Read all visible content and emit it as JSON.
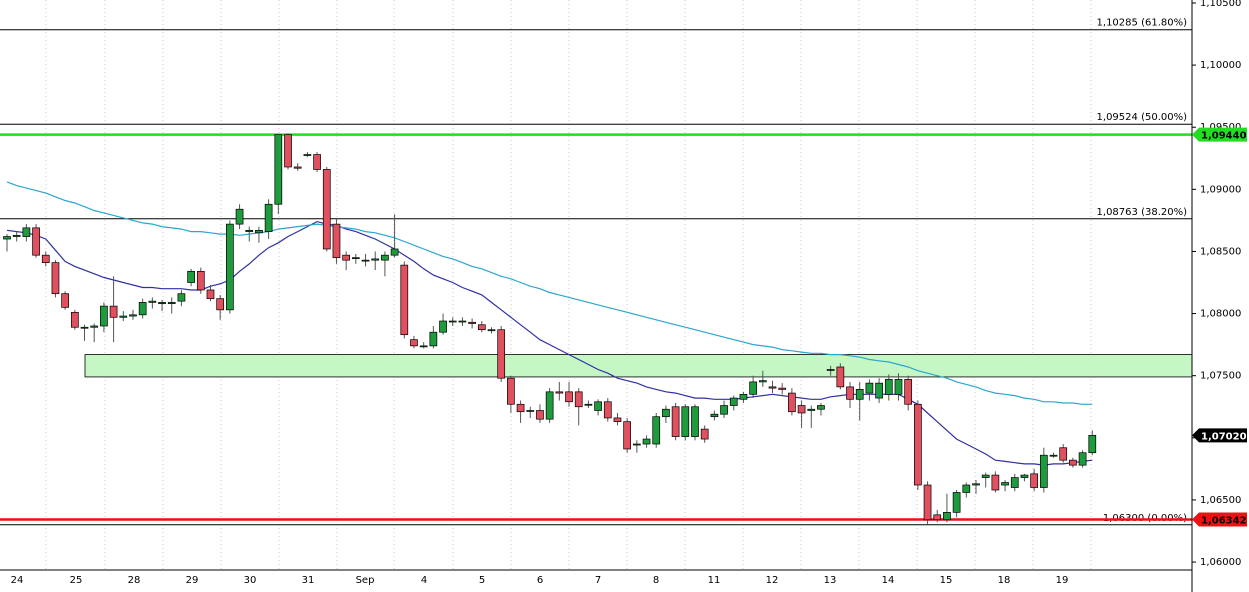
{
  "chart_data": {
    "type": "candlestick",
    "x_labels": [
      "24",
      "25",
      "28",
      "29",
      "30",
      "31",
      "Sep",
      "4",
      "5",
      "6",
      "7",
      "8",
      "11",
      "12",
      "13",
      "14",
      "15",
      "18",
      "19"
    ],
    "open": [
      1.086,
      1.0862,
      1.0862,
      1.0869,
      1.0847,
      1.0841,
      1.0816,
      1.0801,
      1.0789,
      1.0789,
      1.079,
      1.0806,
      1.0797,
      1.0798,
      1.0799,
      1.0809,
      1.0808,
      1.0808,
      1.081,
      1.0825,
      1.0834,
      1.0819,
      1.0812,
      1.0803,
      1.0872,
      1.0866,
      1.0865,
      1.0866,
      1.0888,
      1.0944,
      1.0918,
      1.0928,
      1.0928,
      1.0916,
      1.0872,
      1.0847,
      1.0845,
      1.0843,
      1.0843,
      1.0843,
      1.0847,
      1.0839,
      1.0779,
      1.0774,
      1.0774,
      1.0785,
      1.0794,
      1.0794,
      1.0793,
      1.0791,
      1.0787,
      1.0787,
      1.0748,
      1.0727,
      1.0722,
      1.0722,
      1.0715,
      1.0737,
      1.0737,
      1.0737,
      1.0727,
      1.0722,
      1.0729,
      1.0716,
      1.0713,
      1.0695,
      1.0695,
      1.0695,
      1.0717,
      1.0725,
      1.0701,
      1.0701,
      1.0707,
      1.0717,
      1.0719,
      1.0726,
      1.0731,
      1.0735,
      1.0745,
      1.074,
      1.074,
      1.0736,
      1.0726,
      1.0722,
      1.0723,
      1.0755,
      1.0757,
      1.0741,
      1.0731,
      1.0736,
      1.0732,
      1.0735,
      1.0735,
      1.0747,
      1.0727,
      1.0662,
      1.0638,
      1.0634,
      1.064,
      1.0656,
      1.0662,
      1.0668,
      1.067,
      1.0662,
      1.066,
      1.0668,
      1.0671,
      1.066,
      1.0686,
      1.0692,
      1.0682,
      1.0678,
      1.0688
    ],
    "high": [
      1.0864,
      1.0866,
      1.0872,
      1.0872,
      1.085,
      1.0843,
      1.0818,
      1.0803,
      1.0791,
      1.0792,
      1.0809,
      1.083,
      1.0802,
      1.0803,
      1.0812,
      1.0813,
      1.0811,
      1.0813,
      1.0819,
      1.0836,
      1.0837,
      1.0823,
      1.0815,
      1.0875,
      1.0888,
      1.087,
      1.087,
      1.0892,
      1.0944,
      1.0945,
      1.0921,
      1.093,
      1.093,
      1.0918,
      1.0876,
      1.085,
      1.0848,
      1.0848,
      1.085,
      1.085,
      1.088,
      1.0842,
      1.0782,
      1.0777,
      1.079,
      1.08,
      1.0797,
      1.0797,
      1.0796,
      1.0794,
      1.0789,
      1.079,
      1.075,
      1.073,
      1.0725,
      1.0727,
      1.074,
      1.0745,
      1.0745,
      1.074,
      1.073,
      1.0731,
      1.0732,
      1.072,
      1.0716,
      1.0698,
      1.0702,
      1.072,
      1.0726,
      1.0728,
      1.0727,
      1.0727,
      1.071,
      1.0722,
      1.073,
      1.0734,
      1.0737,
      1.075,
      1.0754,
      1.0746,
      1.0744,
      1.074,
      1.073,
      1.0726,
      1.0728,
      1.0758,
      1.076,
      1.0745,
      1.0745,
      1.0747,
      1.0748,
      1.0751,
      1.0752,
      1.075,
      1.073,
      1.0665,
      1.0642,
      1.0655,
      1.0658,
      1.0664,
      1.0666,
      1.0672,
      1.0673,
      1.0666,
      1.0671,
      1.0671,
      1.0675,
      1.0692,
      1.0688,
      1.0695,
      1.0684,
      1.069,
      1.0706
    ],
    "low": [
      1.085,
      1.0858,
      1.0858,
      1.0845,
      1.0838,
      1.0813,
      1.0803,
      1.0787,
      1.0778,
      1.0777,
      1.0785,
      1.0777,
      1.0794,
      1.0795,
      1.0796,
      1.0804,
      1.0802,
      1.08,
      1.0806,
      1.0822,
      1.0816,
      1.081,
      1.0795,
      1.08,
      1.0868,
      1.0858,
      1.0857,
      1.086,
      1.088,
      1.0916,
      1.0915,
      1.0926,
      1.0914,
      1.085,
      1.084,
      1.0835,
      1.084,
      1.0838,
      1.0835,
      1.083,
      1.0845,
      1.078,
      1.0772,
      1.0772,
      1.0772,
      1.0783,
      1.079,
      1.079,
      1.0788,
      1.0785,
      1.0784,
      1.0745,
      1.072,
      1.0712,
      1.0716,
      1.0712,
      1.0712,
      1.073,
      1.0725,
      1.071,
      1.0724,
      1.0718,
      1.0713,
      1.071,
      1.0688,
      1.0688,
      1.0692,
      1.0692,
      1.0712,
      1.0698,
      1.0698,
      1.0698,
      1.0696,
      1.0714,
      1.0716,
      1.0722,
      1.0728,
      1.0732,
      1.0741,
      1.0736,
      1.0735,
      1.0718,
      1.0708,
      1.0708,
      1.0718,
      1.075,
      1.0739,
      1.0724,
      1.0714,
      1.073,
      1.0728,
      1.073,
      1.073,
      1.0722,
      1.0658,
      1.063,
      1.0632,
      1.0632,
      1.0636,
      1.0652,
      1.0655,
      1.066,
      1.0656,
      1.0657,
      1.0657,
      1.0665,
      1.0657,
      1.0656,
      1.0684,
      1.068,
      1.0676,
      1.0676,
      1.0686
    ],
    "close": [
      1.0862,
      1.0863,
      1.0869,
      1.0847,
      1.0841,
      1.0816,
      1.0805,
      1.0789,
      1.0789,
      1.079,
      1.0806,
      1.0797,
      1.0798,
      1.0799,
      1.0809,
      1.081,
      1.0809,
      1.0809,
      1.0816,
      1.0834,
      1.0819,
      1.0812,
      1.0803,
      1.0872,
      1.0884,
      1.0867,
      1.0867,
      1.0888,
      1.0944,
      1.0918,
      1.0917,
      1.0928,
      1.0916,
      1.0852,
      1.0845,
      1.0843,
      1.0845,
      1.0843,
      1.0844,
      1.0847,
      1.0852,
      1.0783,
      1.0774,
      1.0774,
      1.0785,
      1.0794,
      1.0794,
      1.0794,
      1.0792,
      1.0787,
      1.0787,
      1.0748,
      1.0727,
      1.0721,
      1.0722,
      1.0715,
      1.0737,
      1.0736,
      1.0729,
      1.0725,
      1.0727,
      1.0729,
      1.0716,
      1.0713,
      1.0691,
      1.0695,
      1.0699,
      1.0717,
      1.0723,
      1.0701,
      1.0725,
      1.0725,
      1.0699,
      1.0719,
      1.0726,
      1.0732,
      1.0735,
      1.0745,
      1.0746,
      1.0741,
      1.0739,
      1.0721,
      1.072,
      1.0723,
      1.0726,
      1.0755,
      1.0741,
      1.0731,
      1.0739,
      1.0744,
      1.0744,
      1.0747,
      1.0747,
      1.0727,
      1.0662,
      1.0634,
      1.0634,
      1.064,
      1.0656,
      1.0662,
      1.0663,
      1.067,
      1.0658,
      1.0664,
      1.0668,
      1.067,
      1.066,
      1.0686,
      1.0686,
      1.0682,
      1.0678,
      1.0688,
      1.0702
    ],
    "up_color": "#1e9b3c",
    "down_color": "#e0505e",
    "series": [
      {
        "color": "#2f2fa8",
        "values": [
          1.0867,
          1.0866,
          1.0865,
          1.0863,
          1.086,
          1.0851,
          1.0842,
          1.0838,
          1.0835,
          1.0832,
          1.0829,
          1.0827,
          1.0825,
          1.0823,
          1.0821,
          1.0821,
          1.082,
          1.082,
          1.082,
          1.0819,
          1.0819,
          1.0822,
          1.0824,
          1.0827,
          1.0834,
          1.084,
          1.0847,
          1.0853,
          1.0857,
          1.0862,
          1.0866,
          1.087,
          1.0874,
          1.0872,
          1.0871,
          1.0868,
          1.0866,
          1.0863,
          1.086,
          1.0856,
          1.0852,
          1.0847,
          1.0842,
          1.0836,
          1.0831,
          1.0828,
          1.0825,
          1.0821,
          1.0818,
          1.0815,
          1.0809,
          1.0803,
          1.0797,
          1.0791,
          1.0785,
          1.0779,
          1.0775,
          1.0771,
          1.0767,
          1.0763,
          1.0759,
          1.0755,
          1.0752,
          1.0748,
          1.0746,
          1.0744,
          1.0741,
          1.0739,
          1.0737,
          1.0736,
          1.0734,
          1.0732,
          1.0732,
          1.0731,
          1.0731,
          1.0731,
          1.0732,
          1.0733,
          1.0734,
          1.0735,
          1.0734,
          1.0733,
          1.0732,
          1.0731,
          1.0731,
          1.0733,
          1.0734,
          1.0735,
          1.0735,
          1.0735,
          1.0735,
          1.0735,
          1.0735,
          1.0731,
          1.0727,
          1.072,
          1.0713,
          1.0706,
          1.0699,
          1.0695,
          1.0691,
          1.0687,
          1.0682,
          1.0681,
          1.068,
          1.0679,
          1.0679,
          1.0678,
          1.0679,
          1.0679,
          1.068,
          1.0681,
          1.0682
        ]
      },
      {
        "color": "#2aa6cf",
        "values": [
          1.0906,
          1.0903,
          1.0901,
          1.0899,
          1.0897,
          1.0894,
          1.0891,
          1.0889,
          1.0886,
          1.0883,
          1.0881,
          1.0879,
          1.0877,
          1.0875,
          1.0873,
          1.0872,
          1.087,
          1.0869,
          1.0868,
          1.0866,
          1.0866,
          1.0865,
          1.0864,
          1.0864,
          1.0863,
          1.0864,
          1.0865,
          1.0866,
          1.0868,
          1.0869,
          1.087,
          1.0871,
          1.0872,
          1.0871,
          1.087,
          1.0869,
          1.0868,
          1.0866,
          1.0865,
          1.0863,
          1.0861,
          1.0858,
          1.0855,
          1.0852,
          1.0849,
          1.0846,
          1.0844,
          1.0841,
          1.0838,
          1.0836,
          1.0833,
          1.083,
          1.0828,
          1.0825,
          1.0822,
          1.082,
          1.0817,
          1.0815,
          1.0813,
          1.0811,
          1.0809,
          1.0807,
          1.0805,
          1.0803,
          1.0801,
          1.0799,
          1.0797,
          1.0795,
          1.0793,
          1.0791,
          1.0789,
          1.0787,
          1.0785,
          1.0783,
          1.0781,
          1.0779,
          1.0777,
          1.0775,
          1.0774,
          1.0773,
          1.0771,
          1.077,
          1.0769,
          1.0768,
          1.0768,
          1.0767,
          1.0767,
          1.0766,
          1.0765,
          1.0763,
          1.0762,
          1.0761,
          1.0759,
          1.0757,
          1.0754,
          1.0752,
          1.075,
          1.0748,
          1.0745,
          1.0743,
          1.0741,
          1.0738,
          1.0736,
          1.0735,
          1.0734,
          1.0732,
          1.0731,
          1.0729,
          1.0729,
          1.0728,
          1.0728,
          1.0727,
          1.0727
        ]
      }
    ],
    "levels": [
      {
        "value": 1.10285,
        "label": "1,10285 (61.80%)"
      },
      {
        "value": 1.09524,
        "label": "1,09524 (50.00%)"
      },
      {
        "value": 1.08763,
        "label": "1,08763 (38.20%)"
      },
      {
        "value": 1.063,
        "label": "1,06300 (0.00%)"
      }
    ],
    "markers": [
      {
        "value": 1.0944,
        "label": "1,09440",
        "color": "#22dd22"
      },
      {
        "value": 1.06342,
        "label": "1,06342",
        "color": "#ee1111"
      },
      {
        "value": 1.0702,
        "label": "1,07020",
        "color": "#000000"
      }
    ],
    "zone": [
      1.0749,
      1.0767
    ],
    "zone_color": "#c4f7c4",
    "ylim": [
      1.05936,
      1.10524
    ],
    "yticks": [
      {
        "value": 1.06,
        "label": "1,06000"
      },
      {
        "value": 1.065,
        "label": "1,06500"
      },
      {
        "value": 1.07,
        "label": "1,07000"
      },
      {
        "value": 1.075,
        "label": "1,07500"
      },
      {
        "value": 1.08,
        "label": "1,08000"
      },
      {
        "value": 1.085,
        "label": "1,08500"
      },
      {
        "value": 1.09,
        "label": "1,09000"
      },
      {
        "value": 1.095,
        "label": "1,09500"
      },
      {
        "value": 1.1,
        "label": "1,10000"
      },
      {
        "value": 1.105,
        "label": "1,10500"
      }
    ]
  }
}
